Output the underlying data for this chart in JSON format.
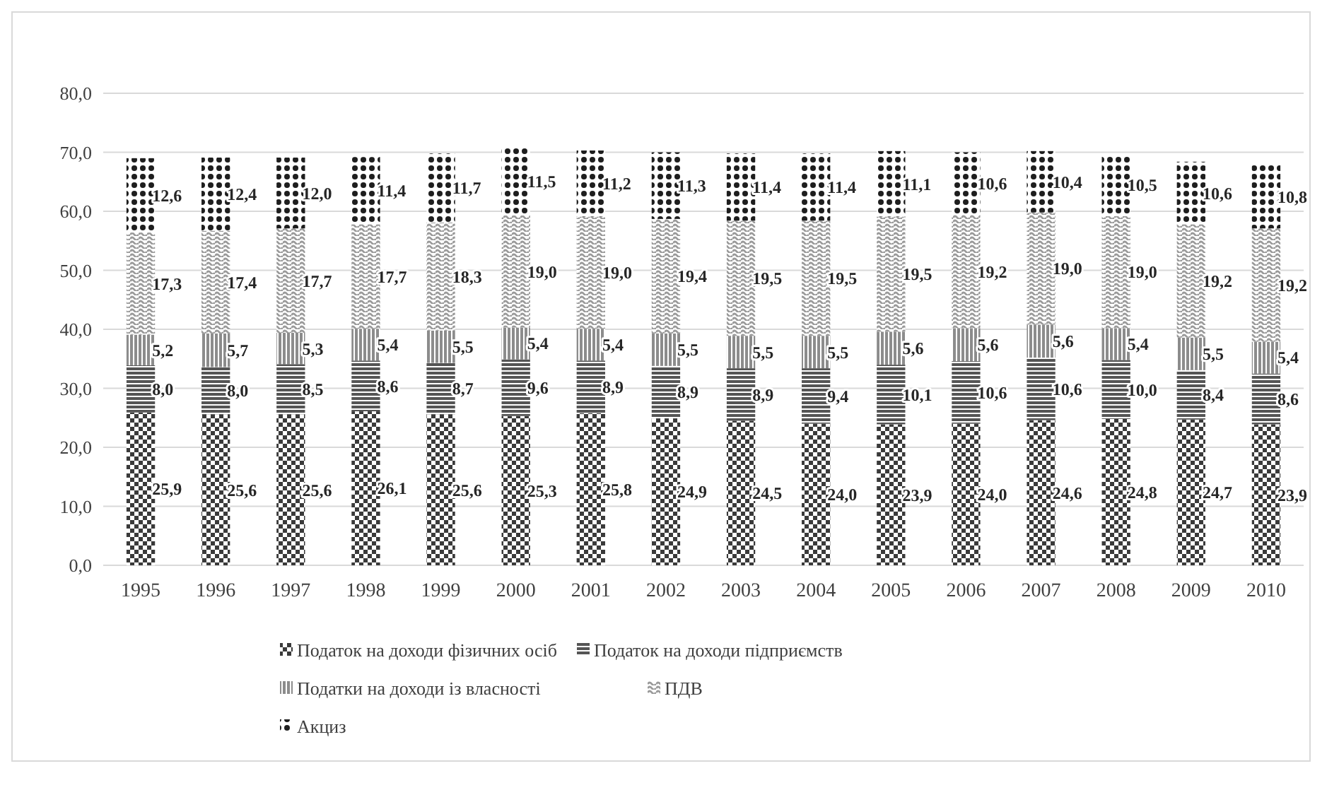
{
  "chart_data": {
    "type": "bar",
    "stacked": true,
    "categories": [
      "1995",
      "1996",
      "1997",
      "1998",
      "1999",
      "2000",
      "2001",
      "2002",
      "2003",
      "2004",
      "2005",
      "2006",
      "2007",
      "2008",
      "2009",
      "2010"
    ],
    "series": [
      {
        "name": "Податок на доходи фізичних осіб",
        "color": "#3a3a3a",
        "values": [
          25.9,
          25.6,
          25.6,
          26.1,
          25.6,
          25.3,
          25.8,
          24.9,
          24.5,
          24.0,
          23.9,
          24.0,
          24.6,
          24.8,
          24.7,
          23.9
        ],
        "value_labels": [
          "25,9",
          "25,6",
          "25,6",
          "26,1",
          "25,6",
          "25,3",
          "25,8",
          "24,9",
          "24,5",
          "24,0",
          "23,9",
          "24,0",
          "24,6",
          "24,8",
          "24,7",
          "23,9"
        ]
      },
      {
        "name": "Податок на доходи підприємств",
        "color": "#555555",
        "values": [
          8.0,
          8.0,
          8.5,
          8.6,
          8.7,
          9.6,
          8.9,
          8.9,
          8.9,
          9.4,
          10.1,
          10.6,
          10.6,
          10.0,
          8.4,
          8.6
        ],
        "value_labels": [
          "8,0",
          "8,0",
          "8,5",
          "8,6",
          "8,7",
          "9,6",
          "8,9",
          "8,9",
          "8,9",
          "9,4",
          "10,1",
          "10,6",
          "10,6",
          "10,0",
          "8,4",
          "8,6"
        ]
      },
      {
        "name": "Податки на доходи із власності",
        "color": "#8c8c8c",
        "values": [
          5.2,
          5.7,
          5.3,
          5.4,
          5.5,
          5.4,
          5.4,
          5.5,
          5.5,
          5.5,
          5.6,
          5.6,
          5.6,
          5.4,
          5.5,
          5.4
        ],
        "value_labels": [
          "5,2",
          "5,7",
          "5,3",
          "5,4",
          "5,5",
          "5,4",
          "5,4",
          "5,5",
          "5,5",
          "5,5",
          "5,6",
          "5,6",
          "5,6",
          "5,4",
          "5,5",
          "5,4"
        ]
      },
      {
        "name": "ПДВ",
        "color": "#9a9a9a",
        "values": [
          17.3,
          17.4,
          17.7,
          17.7,
          18.3,
          19.0,
          19.0,
          19.4,
          19.5,
          19.5,
          19.5,
          19.2,
          19.0,
          19.0,
          19.2,
          19.2
        ],
        "value_labels": [
          "17,3",
          "17,4",
          "17,7",
          "17,7",
          "18,3",
          "19,0",
          "19,0",
          "19,4",
          "19,5",
          "19,5",
          "19,5",
          "19,2",
          "19,0",
          "19,0",
          "19,2",
          "19,2"
        ]
      },
      {
        "name": "Акциз",
        "color": "#1e1e1e",
        "values": [
          12.6,
          12.4,
          12.0,
          11.4,
          11.7,
          11.5,
          11.2,
          11.3,
          11.4,
          11.4,
          11.1,
          10.6,
          10.4,
          10.5,
          10.6,
          10.8
        ],
        "value_labels": [
          "12,6",
          "12,4",
          "12,0",
          "11,4",
          "11,7",
          "11,5",
          "11,2",
          "11,3",
          "11,4",
          "11,4",
          "11,1",
          "10,6",
          "10,4",
          "10,5",
          "10,6",
          "10,8"
        ]
      }
    ],
    "ylim": [
      0,
      80
    ],
    "yticks": [
      {
        "value": 0,
        "label": "0,0"
      },
      {
        "value": 10,
        "label": "10,0"
      },
      {
        "value": 20,
        "label": "20,0"
      },
      {
        "value": 30,
        "label": "30,0"
      },
      {
        "value": 40,
        "label": "40,0"
      },
      {
        "value": 50,
        "label": "50,0"
      },
      {
        "value": 60,
        "label": "60,0"
      },
      {
        "value": 70,
        "label": "70,0"
      },
      {
        "value": 80,
        "label": "80,0"
      }
    ],
    "grid": "y",
    "legend": "bottom",
    "data_labels": true
  }
}
